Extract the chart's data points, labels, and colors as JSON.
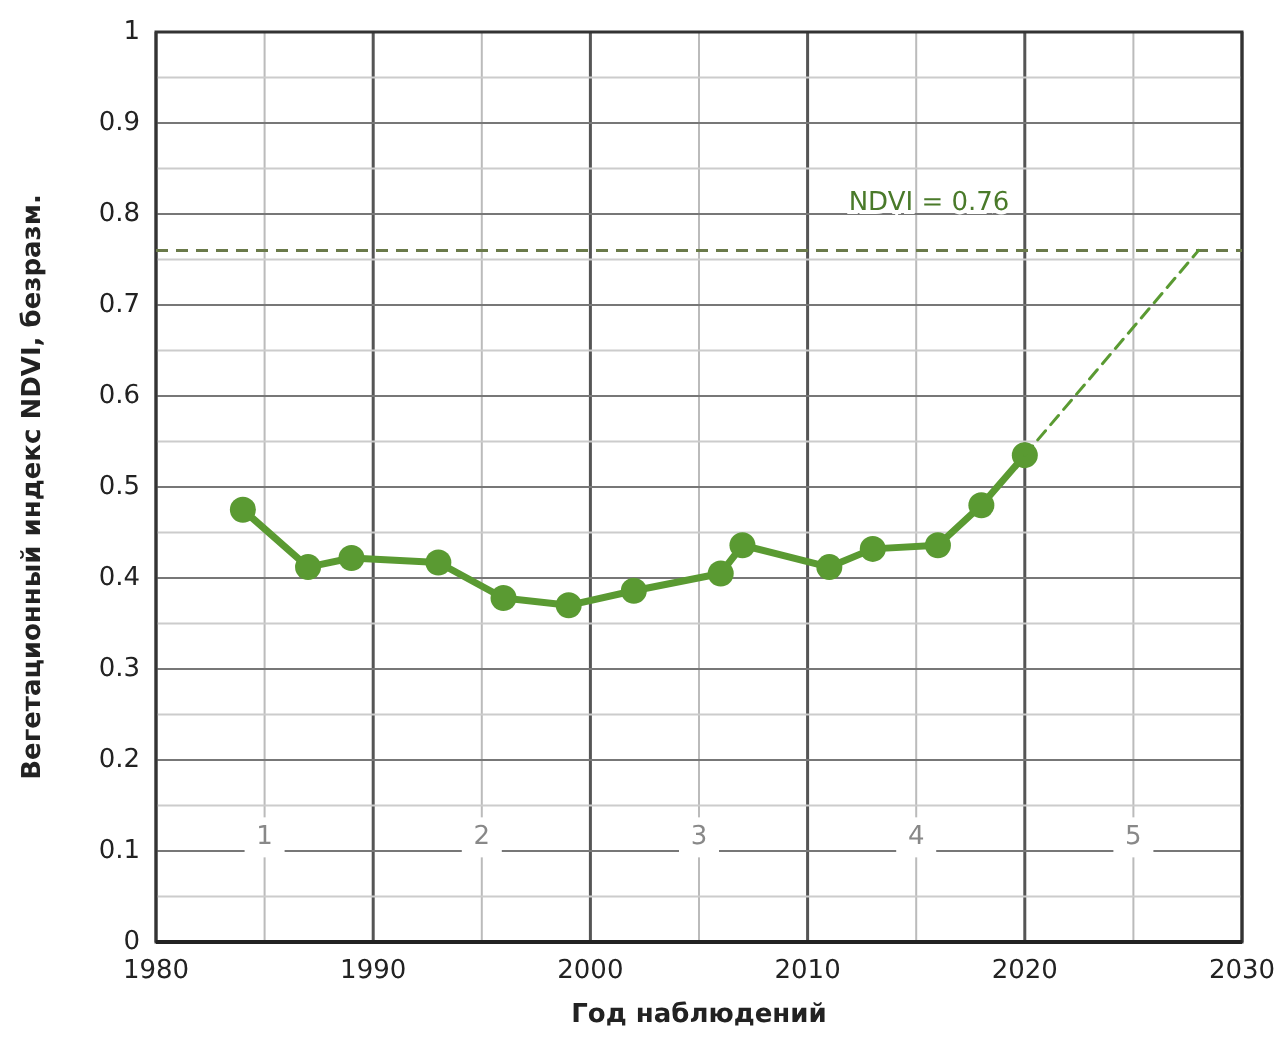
{
  "chart_data": {
    "type": "line",
    "xlabel": "Год наблюдений",
    "ylabel": "Вегетационный индекс NDVI, безразм.",
    "xlim": [
      1980,
      2030
    ],
    "ylim": [
      0,
      1
    ],
    "xticks": [
      1980,
      {
        "value": 1985,
        "label": null
      },
      1990,
      {
        "value": 1995,
        "label": null
      },
      2000,
      {
        "value": 2005,
        "label": null
      },
      2010,
      {
        "value": 2015,
        "label": null
      },
      2020,
      {
        "value": 2025,
        "label": null
      },
      2030
    ],
    "yticks": [
      0,
      {
        "value": 0.05,
        "label": null
      },
      0.1,
      {
        "value": 0.15,
        "label": null
      },
      0.2,
      {
        "value": 0.25,
        "label": null
      },
      0.3,
      {
        "value": 0.35,
        "label": null
      },
      0.4,
      {
        "value": 0.45,
        "label": null
      },
      0.5,
      {
        "value": 0.55,
        "label": null
      },
      0.6,
      {
        "value": 0.65,
        "label": null
      },
      0.7,
      {
        "value": 0.75,
        "label": null
      },
      0.8,
      {
        "value": 0.85,
        "label": null
      },
      0.9,
      {
        "value": 0.95,
        "label": null
      },
      1
    ],
    "grid": true,
    "series": [
      {
        "color": "#5a9a32",
        "marker": "circle",
        "line_style": "solid",
        "x": [
          1984,
          1987,
          1989,
          1993,
          1996,
          1999,
          2002,
          2006,
          2007,
          2011,
          2013,
          2016,
          2018,
          2020
        ],
        "values": [
          0.475,
          0.412,
          0.422,
          0.417,
          0.378,
          0.37,
          0.386,
          0.405,
          0.436,
          0.412,
          0.432,
          0.436,
          0.48,
          0.535
        ]
      },
      {
        "color": "#5a9a32",
        "marker": "none",
        "line_style": "dashed",
        "x": [
          2020,
          2028
        ],
        "values": [
          0.535,
          0.76
        ]
      }
    ],
    "ref_lines": [
      {
        "axis": "y",
        "value": 0.76,
        "label": "NDVI = 0.76",
        "color": "#6a7a4a",
        "line_style": "dashed"
      }
    ],
    "annotations": [
      {
        "text": "1",
        "x": 1985,
        "y": 0.115
      },
      {
        "text": "2",
        "x": 1995,
        "y": 0.115
      },
      {
        "text": "3",
        "x": 2005,
        "y": 0.115
      },
      {
        "text": "4",
        "x": 2015,
        "y": 0.115
      },
      {
        "text": "5",
        "x": 2025,
        "y": 0.115
      }
    ]
  }
}
